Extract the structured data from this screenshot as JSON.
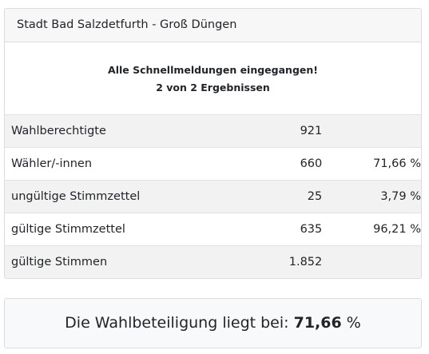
{
  "header": {
    "title": "Stadt Bad Salzdetfurth - Groß Düngen"
  },
  "notice": {
    "line1": "Alle Schnellmeldungen eingegangen!",
    "line2": "2 von 2 Ergebnissen"
  },
  "table": {
    "rows": [
      [
        "Wahlberechtigte",
        "921"
      ],
      [
        "Wähler/-innen",
        "660",
        "71,66 %"
      ],
      [
        "ungültige Stimmzettel",
        "25",
        "3,79 %"
      ],
      [
        "gültige Stimmzettel",
        "635",
        "96,21 %"
      ],
      [
        "gültige Stimmen",
        "1.852"
      ]
    ]
  },
  "footer": {
    "prefix": "Die Wahlbeteiligung liegt bei:",
    "value": "71,66",
    "suffix": "%"
  }
}
